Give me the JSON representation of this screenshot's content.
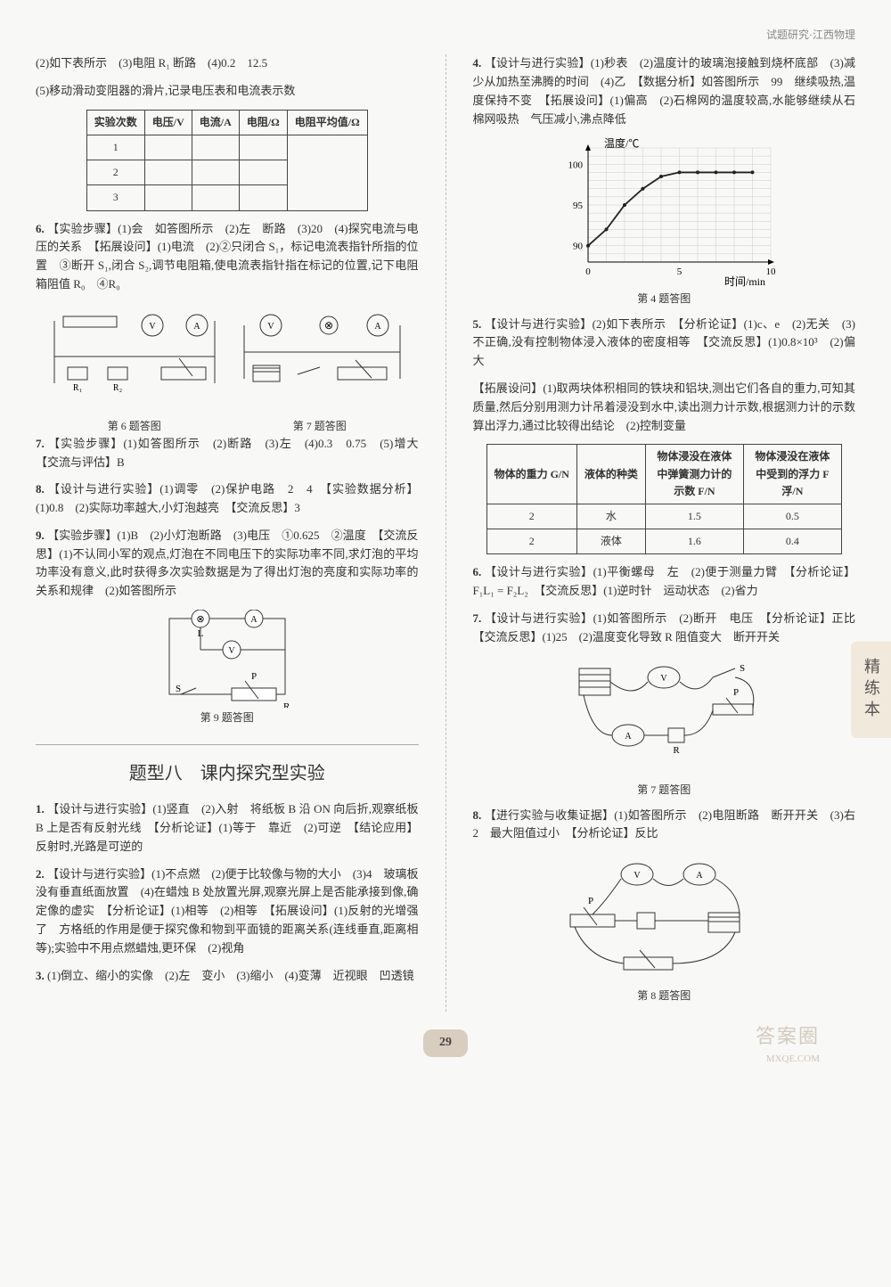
{
  "header": "试题研究·江西物理",
  "sideTab": "精练本",
  "pageNum": "29",
  "watermark": "答案圈",
  "watermarkSub": "MXQE.COM",
  "left": {
    "q5b": "(2)如下表所示　(3)电阻 R₁ 断路　(4)0.2　12.5",
    "q5c": "(5)移动滑动变阻器的滑片,记录电压表和电流表示数",
    "table1": {
      "headers": [
        "实验次数",
        "电压/V",
        "电流/A",
        "电阻/Ω",
        "电阻平均值/Ω"
      ],
      "rows": [
        [
          "1",
          "",
          "",
          "",
          ""
        ],
        [
          "2",
          "",
          "",
          "",
          ""
        ],
        [
          "3",
          "",
          "",
          "",
          ""
        ]
      ]
    },
    "q6": "【实验步骤】(1)会　如答图所示　(2)左　断路　(3)20　(4)探究电流与电压的关系　【拓展设问】(1)电流　(2)②只闭合 S₁，标记电流表指针所指的位置　③断开 S₁,闭合 S₂,调节电阻箱,使电流表指针指在标记的位置,记下电阻箱阻值 R₀　④R₀",
    "fig6cap": "第 6 题答图",
    "fig7cap": "第 7 题答图",
    "q7": "【实验步骤】(1)如答图所示　(2)断路　(3)左　(4)0.3　0.75　(5)增大　【交流与评估】B",
    "q8": "【设计与进行实验】(1)调零　(2)保护电路　2　4　【实验数据分析】(1)0.8　(2)实际功率越大,小灯泡越亮　【交流反思】3",
    "q9": "【实验步骤】(1)B　(2)小灯泡断路　(3)电压　①0.625　②温度　【交流反思】(1)不认同小军的观点,灯泡在不同电压下的实际功率不同,求灯泡的平均功率没有意义,此时获得多次实验数据是为了得出灯泡的亮度和实际功率的关系和规律　(2)如答图所示",
    "fig9cap": "第 9 题答图",
    "sectionTitle": "题型八　课内探究型实验",
    "s1": "【设计与进行实验】(1)竖直　(2)入射　将纸板 B 沿 ON 向后折,观察纸板 B 上是否有反射光线　【分析论证】(1)等于　靠近　(2)可逆　【结论应用】反射时,光路是可逆的",
    "s2": "【设计与进行实验】(1)不点燃　(2)便于比较像与物的大小　(3)4　玻璃板没有垂直纸面放置　(4)在蜡烛 B 处放置光屏,观察光屏上是否能承接到像,确定像的虚实　【分析论证】(1)相等　(2)相等　【拓展设问】(1)反射的光增强了　方格纸的作用是便于探究像和物到平面镜的距离关系(连线垂直,距离相等);实验中不用点燃蜡烛,更环保　(2)视角",
    "s3": "(1)倒立、缩小的实像　(2)左　变小　(3)缩小　(4)变薄　近视眼　凹透镜"
  },
  "right": {
    "q4a": "【设计与进行实验】(1)秒表　(2)温度计的玻璃泡接触到烧杯底部　(3)减少从加热至沸腾的时间　(4)乙　【数据分析】如答图所示　99　继续吸热,温度保持不变　【拓展设问】(1)偏高　(2)石棉网的温度较高,水能够继续从石棉网吸热　气压减小,沸点降低",
    "chart4": {
      "xlabel": "时间/min",
      "ylabel": "温度/℃",
      "xticks": [
        0,
        5,
        10
      ],
      "yticks": [
        90,
        95,
        100
      ],
      "points": [
        [
          0,
          90
        ],
        [
          1,
          92
        ],
        [
          2,
          95
        ],
        [
          3,
          97
        ],
        [
          4,
          98.5
        ],
        [
          5,
          99
        ],
        [
          6,
          99
        ],
        [
          7,
          99
        ],
        [
          8,
          99
        ],
        [
          9,
          99
        ]
      ],
      "grid": "#ccc",
      "line": "#222"
    },
    "fig4cap": "第 4 题答图",
    "q5a": "【设计与进行实验】(2)如下表所示　【分析论证】(1)c、e　(2)无关　(3)不正确,没有控制物体浸入液体的密度相等　【交流反思】(1)0.8×10³　(2)偏大",
    "q5b": "【拓展设问】(1)取两块体积相同的铁块和铝块,测出它们各自的重力,可知其质量,然后分别用测力计吊着浸没到水中,读出测力计示数,根据测力计的示数算出浮力,通过比较得出结论　(2)控制变量",
    "table2": {
      "headers": [
        "物体的重力 G/N",
        "液体的种类",
        "物体浸没在液体中弹簧测力计的示数 F/N",
        "物体浸没在液体中受到的浮力 F浮/N"
      ],
      "rows": [
        [
          "2",
          "水",
          "1.5",
          "0.5"
        ],
        [
          "2",
          "液体",
          "1.6",
          "0.4"
        ]
      ]
    },
    "q6": "【设计与进行实验】(1)平衡螺母　左　(2)便于测量力臂　【分析论证】F₁L₁ = F₂L₂　【交流反思】(1)逆时针　运动状态　(2)省力",
    "q7": "【设计与进行实验】(1)如答图所示　(2)断开　电压　【分析论证】正比　【交流反思】(1)25　(2)温度变化导致 R 阻值变大　断开开关",
    "fig7cap": "第 7 题答图",
    "q8": "【进行实验与收集证据】(1)如答图所示　(2)电阻断路　断开开关　(3)右　2　最大阻值过小　【分析论证】反比",
    "fig8cap": "第 8 题答图"
  }
}
